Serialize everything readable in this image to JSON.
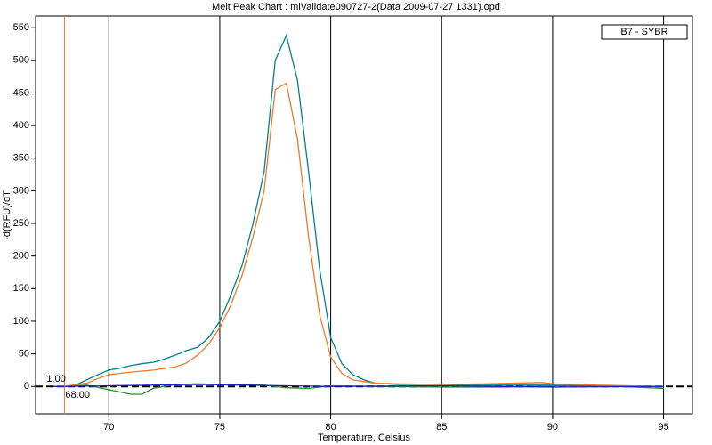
{
  "chart_data": {
    "type": "line",
    "title": "Melt Peak Chart : miValidate090727-2(Data 2009-07-27 1331).opd",
    "x_label": "Temperature, Celsius",
    "y_label": "-d(RFU)/dT",
    "legend_text": "B7 - SYBR",
    "marker": {
      "x": 68,
      "x_label": "68.00",
      "y_label": "1.00"
    },
    "xlim": [
      66.7,
      96.3
    ],
    "ylim": [
      -42,
      568
    ],
    "xticks": [
      70,
      75,
      80,
      85,
      90,
      95
    ],
    "yticks": [
      0,
      50,
      100,
      150,
      200,
      250,
      300,
      350,
      400,
      450,
      500,
      550
    ],
    "grid": true,
    "series": [
      {
        "color": "#00808c",
        "x": [
          67.5,
          68,
          68.5,
          69,
          69.5,
          70,
          70.5,
          71,
          71.5,
          72,
          72.5,
          73,
          73.5,
          74,
          74.5,
          75,
          75.5,
          76,
          76.5,
          77,
          77.5,
          78,
          78.5,
          79,
          79.5,
          80,
          80.5,
          81,
          81.5,
          82,
          83,
          84,
          85,
          86,
          87,
          88,
          90,
          92,
          95
        ],
        "values": [
          0,
          0,
          2,
          10,
          18,
          25,
          28,
          32,
          35,
          37,
          42,
          48,
          55,
          60,
          75,
          100,
          140,
          185,
          250,
          330,
          500,
          538,
          470,
          330,
          180,
          75,
          35,
          18,
          10,
          5,
          3,
          3,
          3,
          2,
          2,
          2,
          2,
          1,
          0
        ]
      },
      {
        "color": "#f07828",
        "x": [
          67.5,
          68,
          69,
          69.5,
          70,
          71,
          72,
          73,
          73.5,
          74,
          74.5,
          75,
          75.5,
          76,
          76.5,
          77,
          77.5,
          78,
          78.5,
          79,
          79.5,
          80,
          80.5,
          81,
          82,
          83,
          85,
          87,
          89.5,
          90,
          92,
          95
        ],
        "values": [
          0,
          0,
          5,
          12,
          18,
          22,
          25,
          30,
          36,
          48,
          65,
          90,
          125,
          170,
          230,
          300,
          455,
          465,
          380,
          230,
          110,
          45,
          20,
          10,
          5,
          4,
          3,
          4,
          6,
          4,
          2,
          0
        ]
      },
      {
        "color": "#2a8a2a",
        "x": [
          67.5,
          68,
          69,
          70,
          71,
          71.5,
          72,
          73,
          74,
          75,
          77,
          78,
          79,
          80,
          82,
          85,
          88,
          90,
          93,
          95
        ],
        "values": [
          0,
          0,
          2,
          -5,
          -12,
          -12,
          -3,
          3,
          4,
          3,
          2,
          -2,
          -3,
          1,
          0,
          -1,
          -1,
          1,
          0,
          -3
        ]
      },
      {
        "color": "#1c1cc8",
        "x": [
          67.5,
          68,
          70,
          72,
          74,
          76,
          78,
          80,
          85,
          90,
          95
        ],
        "values": [
          0,
          0,
          1,
          2,
          3,
          2,
          1,
          0,
          1,
          -1,
          0
        ]
      }
    ]
  }
}
